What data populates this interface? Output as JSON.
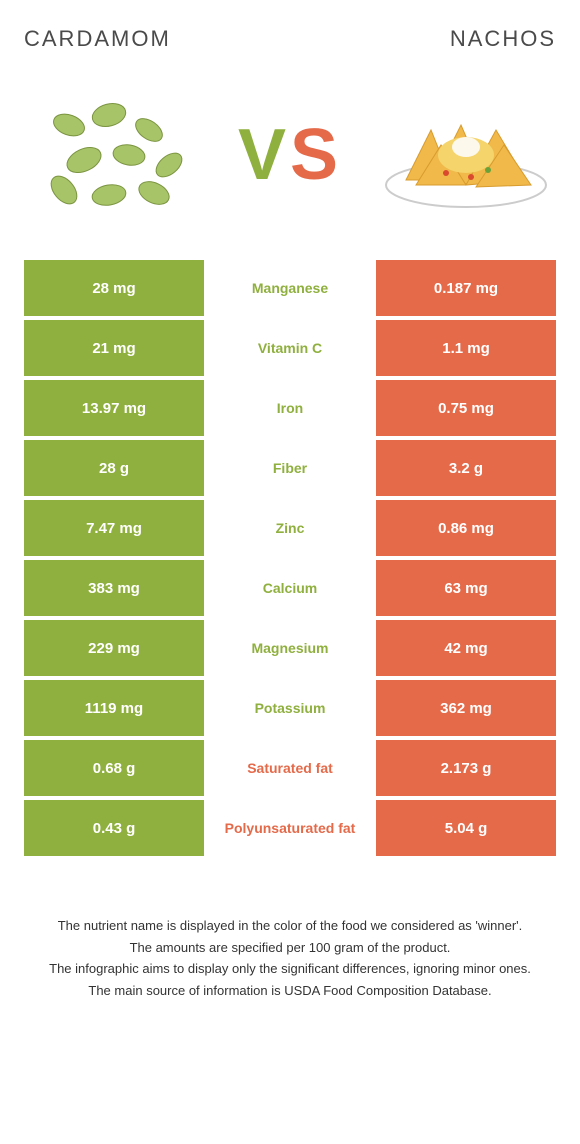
{
  "food_left": {
    "title": "Cardamom"
  },
  "food_right": {
    "title": "Nachos"
  },
  "vs": {
    "v": "V",
    "s": "S"
  },
  "colors": {
    "green": "#8fb03e",
    "orange": "#e46a4a"
  },
  "rows": [
    {
      "left": "28 mg",
      "label": "Manganese",
      "right": "0.187 mg",
      "winner": "left"
    },
    {
      "left": "21 mg",
      "label": "Vitamin C",
      "right": "1.1 mg",
      "winner": "left"
    },
    {
      "left": "13.97 mg",
      "label": "Iron",
      "right": "0.75 mg",
      "winner": "left"
    },
    {
      "left": "28 g",
      "label": "Fiber",
      "right": "3.2 g",
      "winner": "left"
    },
    {
      "left": "7.47 mg",
      "label": "Zinc",
      "right": "0.86 mg",
      "winner": "left"
    },
    {
      "left": "383 mg",
      "label": "Calcium",
      "right": "63 mg",
      "winner": "left"
    },
    {
      "left": "229 mg",
      "label": "Magnesium",
      "right": "42 mg",
      "winner": "left"
    },
    {
      "left": "1119 mg",
      "label": "Potassium",
      "right": "362 mg",
      "winner": "left"
    },
    {
      "left": "0.68 g",
      "label": "Saturated fat",
      "right": "2.173 g",
      "winner": "right"
    },
    {
      "left": "0.43 g",
      "label": "Polyunsaturated fat",
      "right": "5.04 g",
      "winner": "right"
    }
  ],
  "footer": {
    "line1": "The nutrient name is displayed in the color of the food we considered as 'winner'.",
    "line2": "The amounts are specified per 100 gram of the product.",
    "line3": "The infographic aims to display only the significant differences, ignoring minor ones.",
    "line4": "The main source of information is USDA Food Composition Database."
  }
}
